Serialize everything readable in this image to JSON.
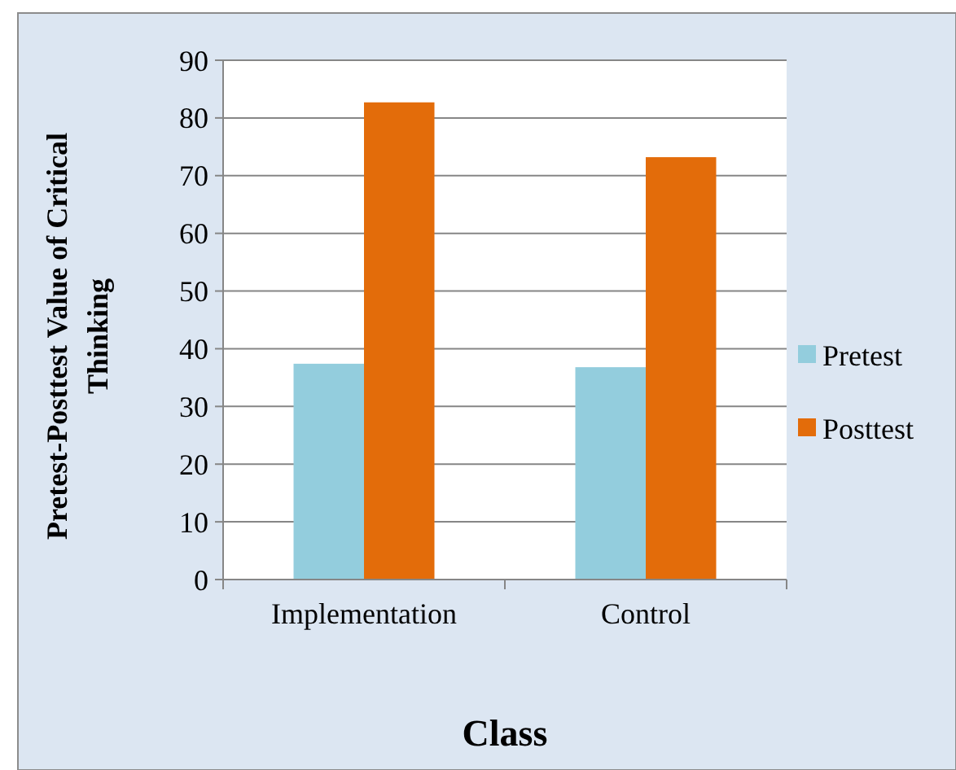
{
  "chart_data": {
    "type": "bar",
    "xlabel": "Class",
    "ylabel": "Pretest-Posttest Value of Critical Thinking",
    "categories": [
      "Implementation",
      "Control"
    ],
    "series": [
      {
        "name": "Pretest",
        "color": "#93cddd",
        "values": [
          37.4,
          36.8
        ]
      },
      {
        "name": "Posttest",
        "color": "#e36c0a",
        "values": [
          82.7,
          73.2
        ]
      }
    ],
    "ylim": [
      0,
      90
    ],
    "yticks": [
      0,
      10,
      20,
      30,
      40,
      50,
      60,
      70,
      80,
      90
    ],
    "grid": "y",
    "legend": "right"
  }
}
